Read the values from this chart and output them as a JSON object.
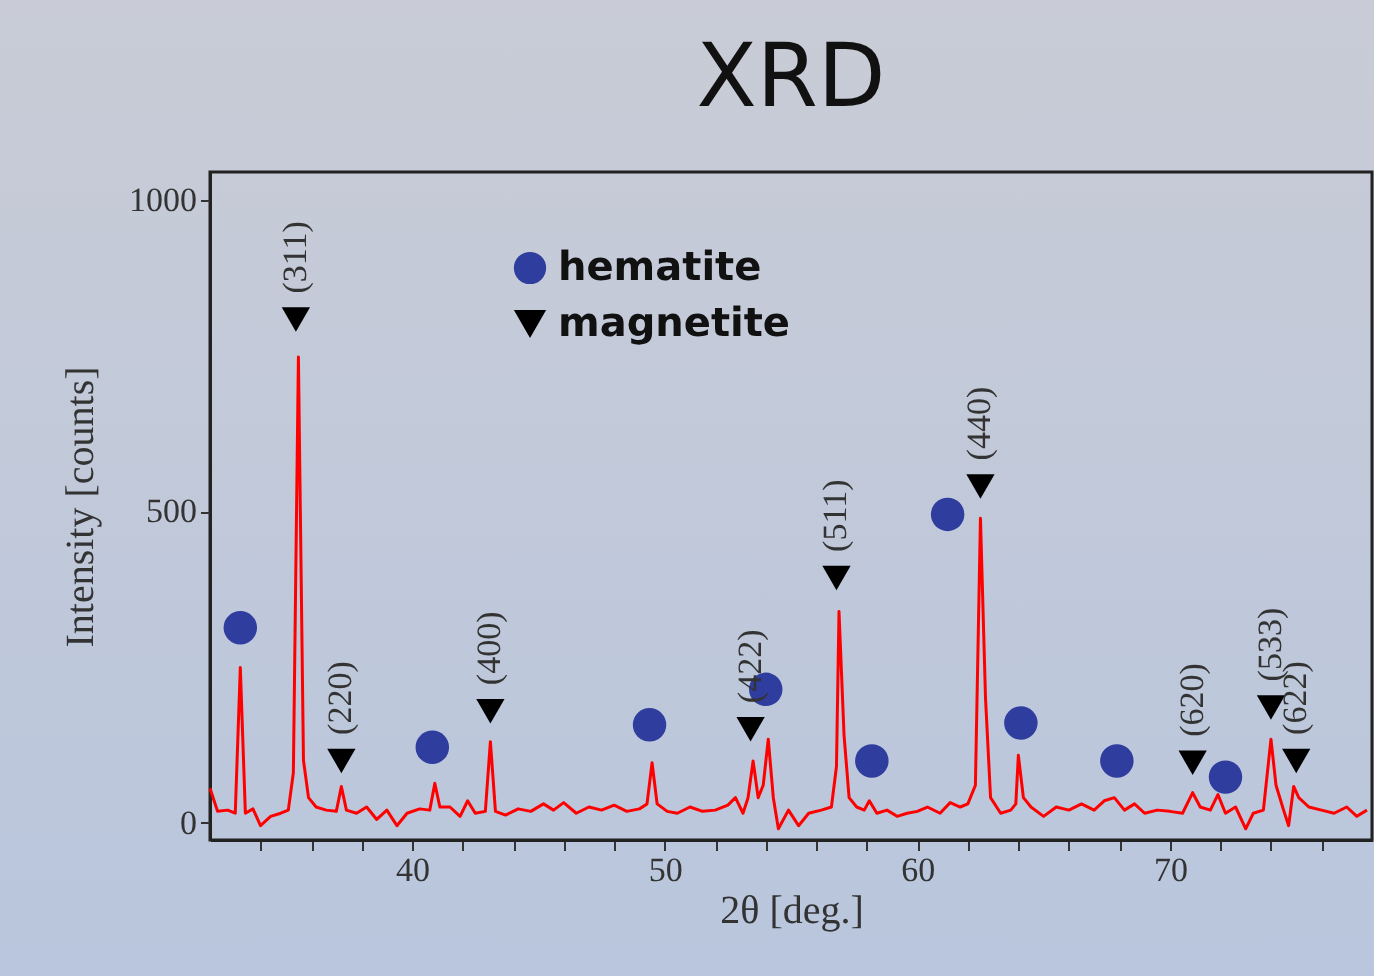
{
  "chart_data": {
    "type": "line",
    "title": "XRD",
    "xlabel": "2θ [deg.]",
    "ylabel": "Intensity [counts]",
    "xlim": [
      32,
      78
    ],
    "ylim": [
      -28,
      1045
    ],
    "xticks": [
      {
        "value": 34,
        "label": null
      },
      {
        "value": 36,
        "label": null
      },
      {
        "value": 38,
        "label": null
      },
      40,
      {
        "value": 42,
        "label": null
      },
      {
        "value": 44,
        "label": null
      },
      {
        "value": 46,
        "label": null
      },
      {
        "value": 48,
        "label": null
      },
      50,
      {
        "value": 52,
        "label": null
      },
      {
        "value": 54,
        "label": null
      },
      {
        "value": 56,
        "label": null
      },
      {
        "value": 58,
        "label": null
      },
      60,
      {
        "value": 62,
        "label": null
      },
      {
        "value": 64,
        "label": null
      },
      {
        "value": 66,
        "label": null
      },
      {
        "value": 68,
        "label": null
      },
      70,
      {
        "value": 72,
        "label": null
      },
      {
        "value": 74,
        "label": null
      },
      {
        "value": 76,
        "label": null
      }
    ],
    "yticks": [
      0,
      500,
      1000
    ],
    "grid": false,
    "legend": "top left",
    "series": [
      {
        "color": "#ff0000",
        "marker": "none",
        "line_style": "solid",
        "x": [
          32.0,
          32.3,
          32.7,
          33.0,
          33.2,
          33.4,
          33.7,
          34.0,
          34.4,
          34.8,
          35.1,
          35.3,
          35.5,
          35.7,
          35.9,
          36.2,
          36.6,
          37.0,
          37.2,
          37.4,
          37.8,
          38.2,
          38.6,
          39.0,
          39.4,
          39.8,
          40.3,
          40.7,
          40.9,
          41.1,
          41.5,
          41.9,
          42.2,
          42.5,
          42.9,
          43.1,
          43.3,
          43.7,
          44.2,
          44.7,
          45.2,
          45.6,
          46.0,
          46.5,
          47.0,
          47.5,
          48.0,
          48.5,
          49.0,
          49.3,
          49.5,
          49.7,
          50.1,
          50.5,
          51.0,
          51.5,
          52.0,
          52.5,
          52.8,
          53.1,
          53.3,
          53.5,
          53.7,
          53.9,
          54.1,
          54.3,
          54.5,
          54.9,
          55.3,
          55.7,
          56.2,
          56.6,
          56.8,
          56.9,
          57.1,
          57.3,
          57.6,
          57.9,
          58.1,
          58.4,
          58.8,
          59.2,
          59.6,
          60.0,
          60.4,
          60.9,
          61.3,
          61.7,
          62.0,
          62.3,
          62.5,
          62.7,
          62.9,
          63.3,
          63.7,
          63.9,
          64.0,
          64.2,
          64.5,
          65.0,
          65.5,
          66.0,
          66.5,
          67.0,
          67.4,
          67.8,
          68.2,
          68.6,
          69.0,
          69.5,
          70.0,
          70.5,
          70.9,
          71.2,
          71.6,
          71.9,
          72.2,
          72.6,
          73.0,
          73.3,
          73.7,
          74.0,
          74.2,
          74.5,
          74.7,
          74.9,
          75.1,
          75.5,
          76.0,
          76.5,
          77.0,
          77.4,
          77.8
        ],
        "values": [
          55,
          18,
          20,
          15,
          249,
          15,
          22,
          -5,
          10,
          15,
          20,
          80,
          748,
          100,
          40,
          25,
          20,
          18,
          58,
          20,
          15,
          25,
          5,
          20,
          -5,
          15,
          22,
          20,
          63,
          25,
          25,
          10,
          35,
          15,
          18,
          130,
          18,
          12,
          22,
          18,
          30,
          20,
          32,
          15,
          25,
          20,
          28,
          18,
          22,
          30,
          96,
          30,
          18,
          15,
          25,
          18,
          20,
          28,
          40,
          15,
          40,
          99,
          40,
          60,
          134,
          40,
          -10,
          20,
          -5,
          15,
          20,
          25,
          90,
          339,
          140,
          40,
          25,
          20,
          35,
          15,
          20,
          10,
          15,
          18,
          25,
          15,
          32,
          25,
          30,
          60,
          489,
          200,
          40,
          15,
          20,
          30,
          108,
          40,
          25,
          10,
          25,
          20,
          30,
          20,
          35,
          40,
          20,
          30,
          15,
          20,
          18,
          15,
          48,
          25,
          20,
          45,
          15,
          25,
          -10,
          15,
          20,
          134,
          60,
          20,
          -5,
          58,
          40,
          25,
          20,
          15,
          25,
          10,
          20
        ]
      },
      {
        "type": "scatter",
        "name": "hematite",
        "color": "#2e3d9e",
        "marker": "circle",
        "x": [
          33.2,
          40.8,
          49.4,
          54.0,
          58.2,
          61.2,
          64.1,
          67.9,
          72.2
        ],
        "values": [
          313,
          121,
          157,
          214,
          99,
          495,
          160,
          99,
          73
        ]
      },
      {
        "type": "scatter",
        "name": "magnetite",
        "color": "#000000",
        "marker": "triangle",
        "x": [
          35.4,
          37.2,
          43.1,
          53.4,
          56.8,
          62.5,
          70.9,
          74.0,
          75.0
        ],
        "values": [
          808,
          99,
          179,
          150,
          393,
          540,
          96,
          185,
          99
        ]
      }
    ],
    "annotations": [
      {
        "text": "(311)",
        "x": 35.4,
        "y": 808
      },
      {
        "text": "(220)",
        "x": 37.2,
        "y": 99
      },
      {
        "text": "(400)",
        "x": 43.1,
        "y": 179
      },
      {
        "text": "(422)",
        "x": 53.4,
        "y": 150
      },
      {
        "text": "(511)",
        "x": 56.8,
        "y": 393
      },
      {
        "text": "(440)",
        "x": 62.5,
        "y": 540
      },
      {
        "text": "(620)",
        "x": 70.9,
        "y": 96
      },
      {
        "text": "(533)",
        "x": 74.0,
        "y": 185
      },
      {
        "text": "(622)",
        "x": 75.0,
        "y": 99
      }
    ]
  }
}
